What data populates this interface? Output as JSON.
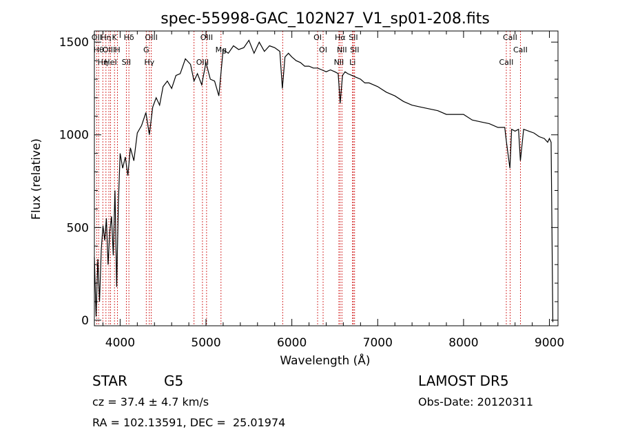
{
  "chart_data": {
    "type": "line",
    "title": "spec-55998-GAC_102N27_V1_sp01-208.fits",
    "xlabel": "Wavelength (Å)",
    "ylabel": "Flux (relative)",
    "xlim": [
      3700,
      9100
    ],
    "ylim": [
      -30,
      1560
    ],
    "xticks": [
      4000,
      5000,
      6000,
      7000,
      8000,
      9000
    ],
    "yticks": [
      0,
      500,
      1000,
      1500
    ],
    "x_minor_step": 200,
    "y_minor_step": 100,
    "grid": false,
    "line_color": "#000000",
    "marker_color": "#cc0000",
    "series": [
      {
        "x": [
          3700,
          3720,
          3740,
          3760,
          3780,
          3800,
          3820,
          3840,
          3860,
          3880,
          3900,
          3920,
          3940,
          3960,
          3980,
          4000,
          4030,
          4060,
          4090,
          4120,
          4160,
          4200,
          4250,
          4300,
          4340,
          4380,
          4420,
          4460,
          4500,
          4550,
          4600,
          4650,
          4700,
          4760,
          4820,
          4860,
          4900,
          4950,
          5000,
          5050,
          5100,
          5150,
          5200,
          5260,
          5320,
          5380,
          5440,
          5500,
          5560,
          5620,
          5680,
          5740,
          5800,
          5860,
          5890,
          5920,
          5960,
          6000,
          6050,
          6100,
          6150,
          6200,
          6250,
          6300,
          6350,
          6400,
          6450,
          6500,
          6540,
          6563,
          6590,
          6620,
          6650,
          6700,
          6750,
          6800,
          6850,
          6900,
          6950,
          7000,
          7100,
          7200,
          7300,
          7400,
          7500,
          7600,
          7700,
          7800,
          7900,
          8000,
          8100,
          8200,
          8300,
          8400,
          8480,
          8500,
          8540,
          8560,
          8600,
          8640,
          8662,
          8700,
          8760,
          8820,
          8880,
          8940,
          8980,
          9000,
          9020,
          9040
        ],
        "y": [
          340,
          20,
          330,
          100,
          380,
          510,
          430,
          550,
          300,
          480,
          560,
          350,
          700,
          180,
          640,
          900,
          820,
          880,
          780,
          930,
          860,
          1010,
          1050,
          1120,
          1000,
          1150,
          1200,
          1160,
          1260,
          1290,
          1250,
          1320,
          1330,
          1410,
          1380,
          1290,
          1330,
          1270,
          1390,
          1300,
          1290,
          1210,
          1460,
          1440,
          1480,
          1460,
          1470,
          1510,
          1440,
          1500,
          1450,
          1480,
          1470,
          1450,
          1250,
          1420,
          1440,
          1420,
          1400,
          1390,
          1370,
          1370,
          1360,
          1360,
          1350,
          1340,
          1350,
          1340,
          1330,
          1170,
          1320,
          1340,
          1330,
          1320,
          1310,
          1300,
          1280,
          1280,
          1270,
          1260,
          1230,
          1210,
          1180,
          1160,
          1150,
          1140,
          1130,
          1110,
          1110,
          1110,
          1080,
          1070,
          1060,
          1040,
          1040,
          960,
          820,
          1030,
          1020,
          1030,
          860,
          1030,
          1020,
          1010,
          990,
          980,
          960,
          980,
          960,
          -10
        ]
      }
    ],
    "lines": [
      {
        "x": 3727,
        "labels": [
          "OII"
        ]
      },
      {
        "x": 3750,
        "labels": [
          "Hθ"
        ]
      },
      {
        "x": 3798,
        "labels": [
          "Hη"
        ]
      },
      {
        "x": 3835,
        "labels": [
          "Hη"
        ]
      },
      {
        "x": 3869,
        "labels": [
          "OIII"
        ]
      },
      {
        "x": 3889,
        "labels": [
          "HeI"
        ]
      },
      {
        "x": 3934,
        "labels": [
          "K"
        ]
      },
      {
        "x": 3969,
        "labels": [
          "H"
        ]
      },
      {
        "x": 4072,
        "labels": [
          "SII"
        ]
      },
      {
        "x": 4102,
        "labels": [
          "Hδ"
        ]
      },
      {
        "x": 4304,
        "labels": [
          "G"
        ]
      },
      {
        "x": 4340,
        "labels": [
          "Hγ"
        ]
      },
      {
        "x": 4363,
        "labels": [
          "OIII"
        ]
      },
      {
        "x": 4861,
        "labels": []
      },
      {
        "x": 4959,
        "labels": [
          "OIII"
        ]
      },
      {
        "x": 5007,
        "labels": [
          "OIII"
        ]
      },
      {
        "x": 5175,
        "labels": [
          "Mg"
        ]
      },
      {
        "x": 5893,
        "labels": []
      },
      {
        "x": 6300,
        "labels": [
          "OI"
        ]
      },
      {
        "x": 6364,
        "labels": [
          "OI"
        ]
      },
      {
        "x": 6548,
        "labels": [
          "NII"
        ]
      },
      {
        "x": 6563,
        "labels": [
          "Hα"
        ]
      },
      {
        "x": 6583,
        "labels": [
          "NII"
        ]
      },
      {
        "x": 6707,
        "labels": [
          "Li"
        ]
      },
      {
        "x": 6716,
        "labels": [
          "SII"
        ]
      },
      {
        "x": 6731,
        "labels": [
          "SII"
        ]
      },
      {
        "x": 8498,
        "labels": [
          "CaII"
        ]
      },
      {
        "x": 8542,
        "labels": [
          "CaII"
        ]
      },
      {
        "x": 8662,
        "labels": [
          "CaII"
        ]
      }
    ]
  },
  "info": {
    "object_class": "STAR",
    "subclass": "G5",
    "cz": "cz = 37.4 ± 4.7 km/s",
    "coords": "RA = 102.13591, DEC =  25.01974",
    "survey": "LAMOST DR5",
    "obs_date": "Obs-Date: 20120311"
  }
}
